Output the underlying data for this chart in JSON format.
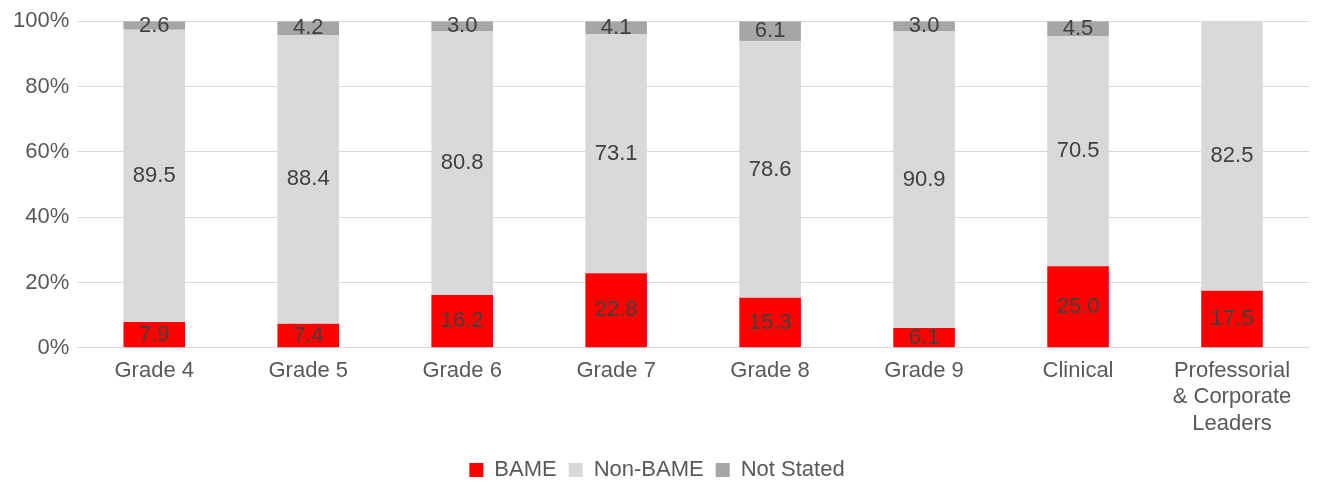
{
  "chart_data": {
    "type": "bar",
    "stacked": true,
    "categories": [
      "Grade 4",
      "Grade 5",
      "Grade 6",
      "Grade 7",
      "Grade 8",
      "Grade 9",
      "Clinical",
      "Professorial & Corporate Leaders"
    ],
    "series": [
      {
        "name": "BAME",
        "color": "#ff0000",
        "values": [
          7.9,
          7.4,
          16.2,
          22.8,
          15.3,
          6.1,
          25.0,
          17.5
        ],
        "value_labels": [
          "7.9",
          "7.4",
          "16.2",
          "22.8",
          "15.3",
          "6.1",
          "25.0",
          "17.5"
        ]
      },
      {
        "name": "Non-BAME",
        "color": "#d9d9d9",
        "values": [
          89.5,
          88.4,
          80.8,
          73.1,
          78.6,
          90.9,
          70.5,
          82.5
        ],
        "value_labels": [
          "89.5",
          "88.4",
          "80.8",
          "73.1",
          "78.6",
          "90.9",
          "70.5",
          "82.5"
        ]
      },
      {
        "name": "Not Stated",
        "color": "#a6a6a6",
        "values": [
          2.6,
          4.2,
          3.0,
          4.1,
          6.1,
          3.0,
          4.5,
          null
        ],
        "value_labels": [
          "2.6",
          "4.2",
          "3.0",
          "4.1",
          "6.1",
          "3.0",
          "4.5",
          null
        ]
      }
    ],
    "ylim": [
      0,
      100
    ],
    "yticks": [
      {
        "value": 0,
        "label": "0%"
      },
      {
        "value": 20,
        "label": "20%"
      },
      {
        "value": 40,
        "label": "40%"
      },
      {
        "value": 60,
        "label": "60%"
      },
      {
        "value": 80,
        "label": "80%"
      },
      {
        "value": 100,
        "label": "100%"
      }
    ],
    "grid": "y",
    "legend": "bottom"
  }
}
